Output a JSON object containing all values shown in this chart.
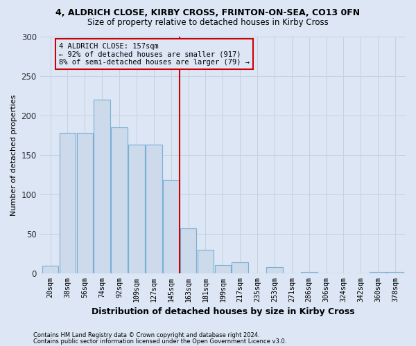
{
  "title_line1": "4, ALDRICH CLOSE, KIRBY CROSS, FRINTON-ON-SEA, CO13 0FN",
  "title_line2": "Size of property relative to detached houses in Kirby Cross",
  "xlabel": "Distribution of detached houses by size in Kirby Cross",
  "ylabel": "Number of detached properties",
  "categories": [
    "20sqm",
    "38sqm",
    "56sqm",
    "74sqm",
    "92sqm",
    "109sqm",
    "127sqm",
    "145sqm",
    "163sqm",
    "181sqm",
    "199sqm",
    "217sqm",
    "235sqm",
    "253sqm",
    "271sqm",
    "286sqm",
    "306sqm",
    "324sqm",
    "342sqm",
    "360sqm",
    "378sqm"
  ],
  "values": [
    10,
    178,
    178,
    220,
    185,
    163,
    163,
    118,
    57,
    30,
    11,
    14,
    0,
    8,
    0,
    2,
    0,
    0,
    0,
    2,
    2
  ],
  "bar_color": "#ccdaeb",
  "bar_edge_color": "#7aafd4",
  "vline_x": 7.5,
  "vline_color": "#cc0000",
  "annotation_text": "4 ALDRICH CLOSE: 157sqm\n← 92% of detached houses are smaller (917)\n8% of semi-detached houses are larger (79) →",
  "annotation_box_color": "#cc0000",
  "ylim": [
    0,
    300
  ],
  "yticks": [
    0,
    50,
    100,
    150,
    200,
    250,
    300
  ],
  "grid_color": "#c5d0e0",
  "background_color": "#dce6f5",
  "footer_line1": "Contains HM Land Registry data © Crown copyright and database right 2024.",
  "footer_line2": "Contains public sector information licensed under the Open Government Licence v3.0."
}
